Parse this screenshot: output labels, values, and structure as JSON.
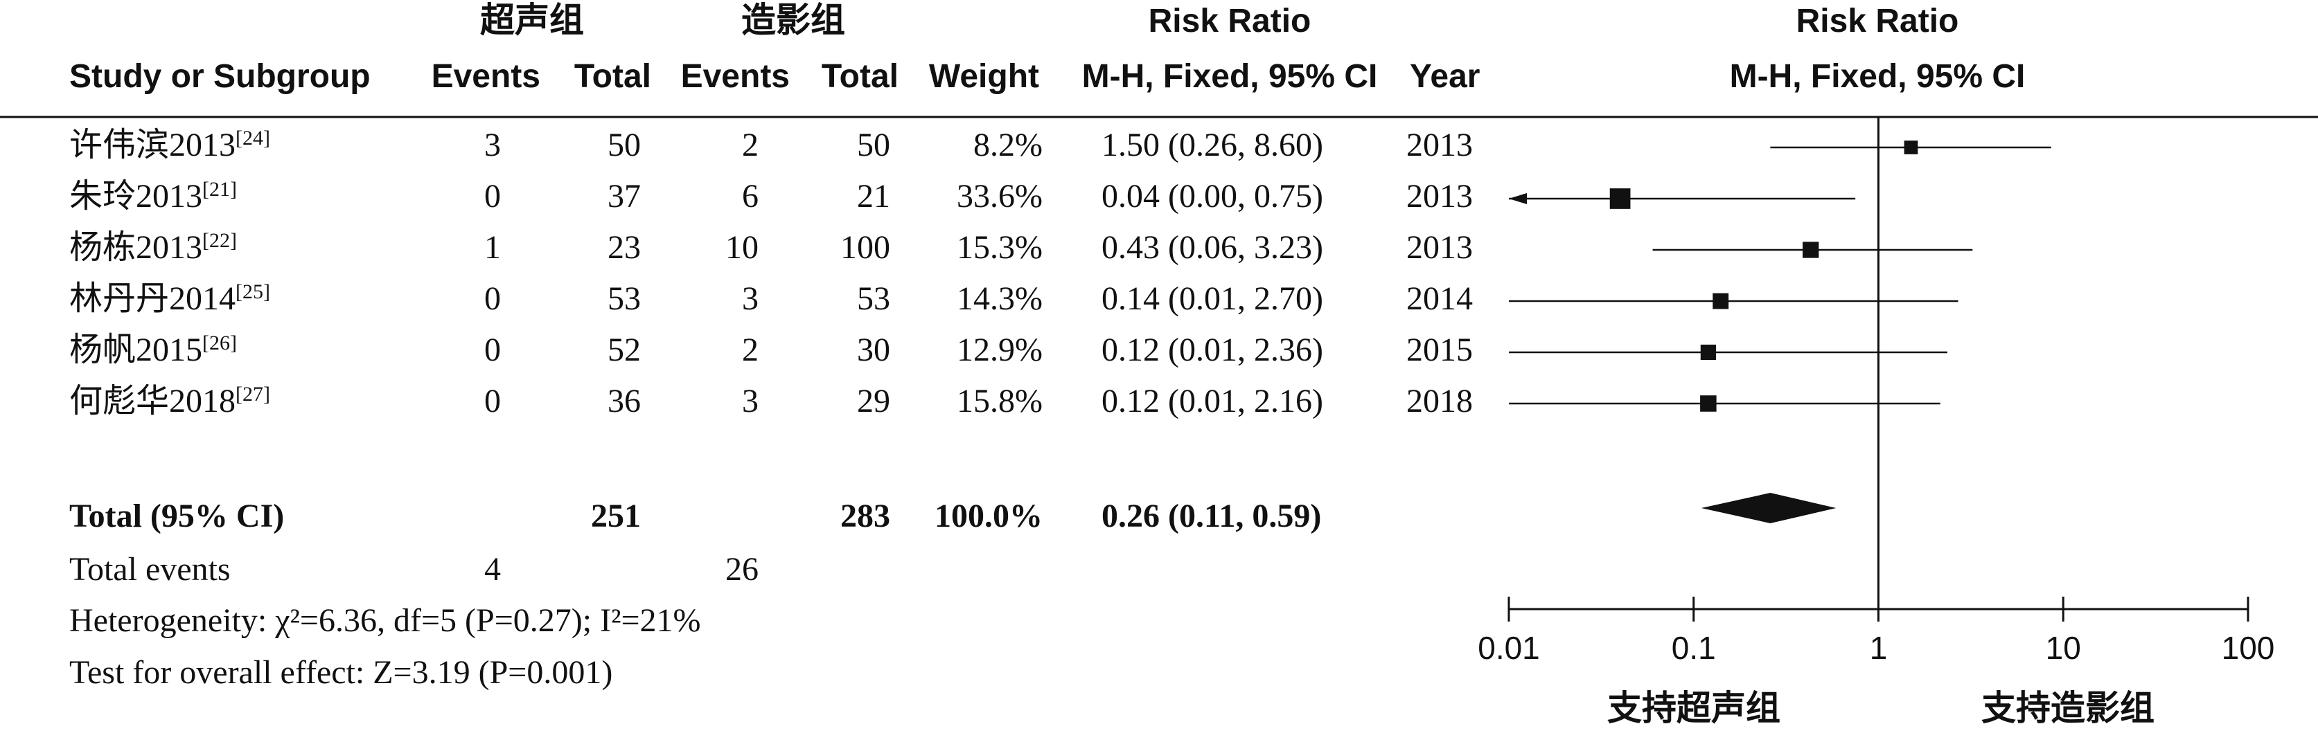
{
  "group_labels": {
    "left": "超声组",
    "right": "造影组"
  },
  "headers": {
    "study": "Study or Subgroup",
    "events1": "Events",
    "total1": "Total",
    "events2": "Events",
    "total2": "Total",
    "weight": "Weight",
    "rr_title": "Risk Ratio",
    "rr_method": "M-H, Fixed, 95% CI",
    "year": "Year",
    "plot_title": "Risk Ratio",
    "plot_method": "M-H, Fixed, 95% CI"
  },
  "chart_data": {
    "type": "forest",
    "scale": "log",
    "x_range": [
      0.01,
      100
    ],
    "x_ticks": [
      "0.01",
      "0.1",
      "1",
      "10",
      "100"
    ],
    "reference_line": 1,
    "favours_left": "支持超声组",
    "favours_right": "支持造影组",
    "studies": [
      {
        "name": "许伟滨2013",
        "ref": "[24]",
        "events1": "3",
        "total1": "50",
        "events2": "2",
        "total2": "50",
        "weight": "8.2%",
        "weight_value": 8.2,
        "ci_text": "1.50 (0.26, 8.60)",
        "rr": 1.5,
        "lower": 0.26,
        "upper": 8.6,
        "year": "2013"
      },
      {
        "name": "朱玲2013",
        "ref": "[21]",
        "events1": "0",
        "total1": "37",
        "events2": "6",
        "total2": "21",
        "weight": "33.6%",
        "weight_value": 33.6,
        "ci_text": "0.04 (0.00, 0.75)",
        "rr": 0.04,
        "lower": 0.0,
        "upper": 0.75,
        "year": "2013"
      },
      {
        "name": "杨栋2013",
        "ref": "[22]",
        "events1": "1",
        "total1": "23",
        "events2": "10",
        "total2": "100",
        "weight": "15.3%",
        "weight_value": 15.3,
        "ci_text": "0.43 (0.06, 3.23)",
        "rr": 0.43,
        "lower": 0.06,
        "upper": 3.23,
        "year": "2013"
      },
      {
        "name": "林丹丹2014",
        "ref": "[25]",
        "events1": "0",
        "total1": "53",
        "events2": "3",
        "total2": "53",
        "weight": "14.3%",
        "weight_value": 14.3,
        "ci_text": "0.14 (0.01, 2.70)",
        "rr": 0.14,
        "lower": 0.01,
        "upper": 2.7,
        "year": "2014"
      },
      {
        "name": "杨帆2015",
        "ref": "[26]",
        "events1": "0",
        "total1": "52",
        "events2": "2",
        "total2": "30",
        "weight": "12.9%",
        "weight_value": 12.9,
        "ci_text": "0.12 (0.01, 2.36)",
        "rr": 0.12,
        "lower": 0.01,
        "upper": 2.36,
        "year": "2015"
      },
      {
        "name": "何彪华2018",
        "ref": "[27]",
        "events1": "0",
        "total1": "36",
        "events2": "3",
        "total2": "29",
        "weight": "15.8%",
        "weight_value": 15.8,
        "ci_text": "0.12 (0.01, 2.16)",
        "rr": 0.12,
        "lower": 0.01,
        "upper": 2.16,
        "year": "2018"
      }
    ],
    "total": {
      "label": "Total (95% CI)",
      "total1": "251",
      "total2": "283",
      "weight": "100.0%",
      "ci_text": "0.26 (0.11, 0.59)",
      "rr": 0.26,
      "lower": 0.11,
      "upper": 0.59
    },
    "total_events": {
      "label": "Total events",
      "events1": "4",
      "events2": "26"
    },
    "heterogeneity": "Heterogeneity: χ²=6.36, df=5 (P=0.27); I²=21%",
    "overall_effect": "Test for overall effect: Z=3.19 (P=0.001)"
  }
}
